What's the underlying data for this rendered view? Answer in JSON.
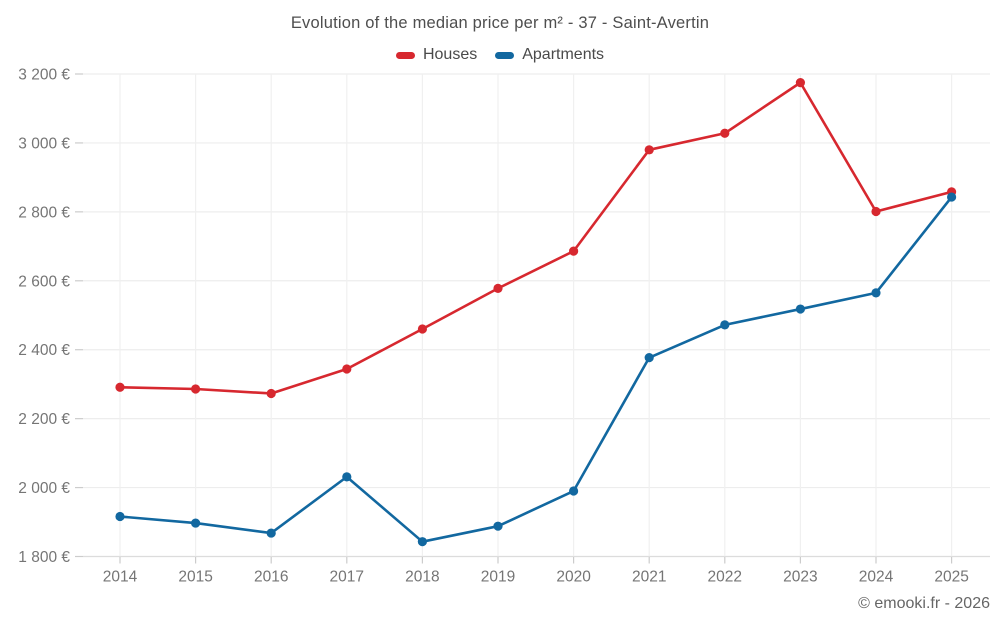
{
  "title": "Evolution of the median price per m² - 37 - Saint-Avertin",
  "footer": "© emooki.fr - 2026",
  "legend": {
    "items": [
      {
        "label": "Houses",
        "color": "#d7282f"
      },
      {
        "label": "Apartments",
        "color": "#1268a0"
      }
    ]
  },
  "colors": {
    "houses": "#d7282f",
    "apartments": "#1268a0",
    "gridline": "#ededed",
    "axis_line": "#dcdcdc",
    "tick": "#cccccc",
    "axis_label": "#757575",
    "title_text": "#4e4e4e"
  },
  "chart_data": {
    "type": "line",
    "title": "Evolution of the median price per m² - 37 - Saint-Avertin",
    "categories": [
      "2014",
      "2015",
      "2016",
      "2017",
      "2018",
      "2019",
      "2020",
      "2021",
      "2022",
      "2023",
      "2024",
      "2025"
    ],
    "series": [
      {
        "name": "Houses",
        "color": "#d7282f",
        "values": [
          2291,
          2286,
          2273,
          2344,
          2460,
          2578,
          2686,
          2980,
          3028,
          3175,
          2801,
          2858
        ]
      },
      {
        "name": "Apartments",
        "color": "#1268a0",
        "values": [
          1916,
          1897,
          1868,
          2031,
          1843,
          1888,
          1990,
          2377,
          2472,
          2518,
          2565,
          2843
        ]
      }
    ],
    "xlabel": "",
    "ylabel": "",
    "ylim": [
      1800,
      3200
    ],
    "yticks": [
      1800,
      2000,
      2200,
      2400,
      2600,
      2800,
      3000,
      3200
    ],
    "ytick_labels": [
      "1 800 €",
      "2 000 €",
      "2 200 €",
      "2 400 €",
      "2 600 €",
      "2 800 €",
      "3 000 €",
      "3 200 €"
    ],
    "grid": true,
    "legend_position": "top",
    "marker": "circle",
    "unit": "€"
  }
}
